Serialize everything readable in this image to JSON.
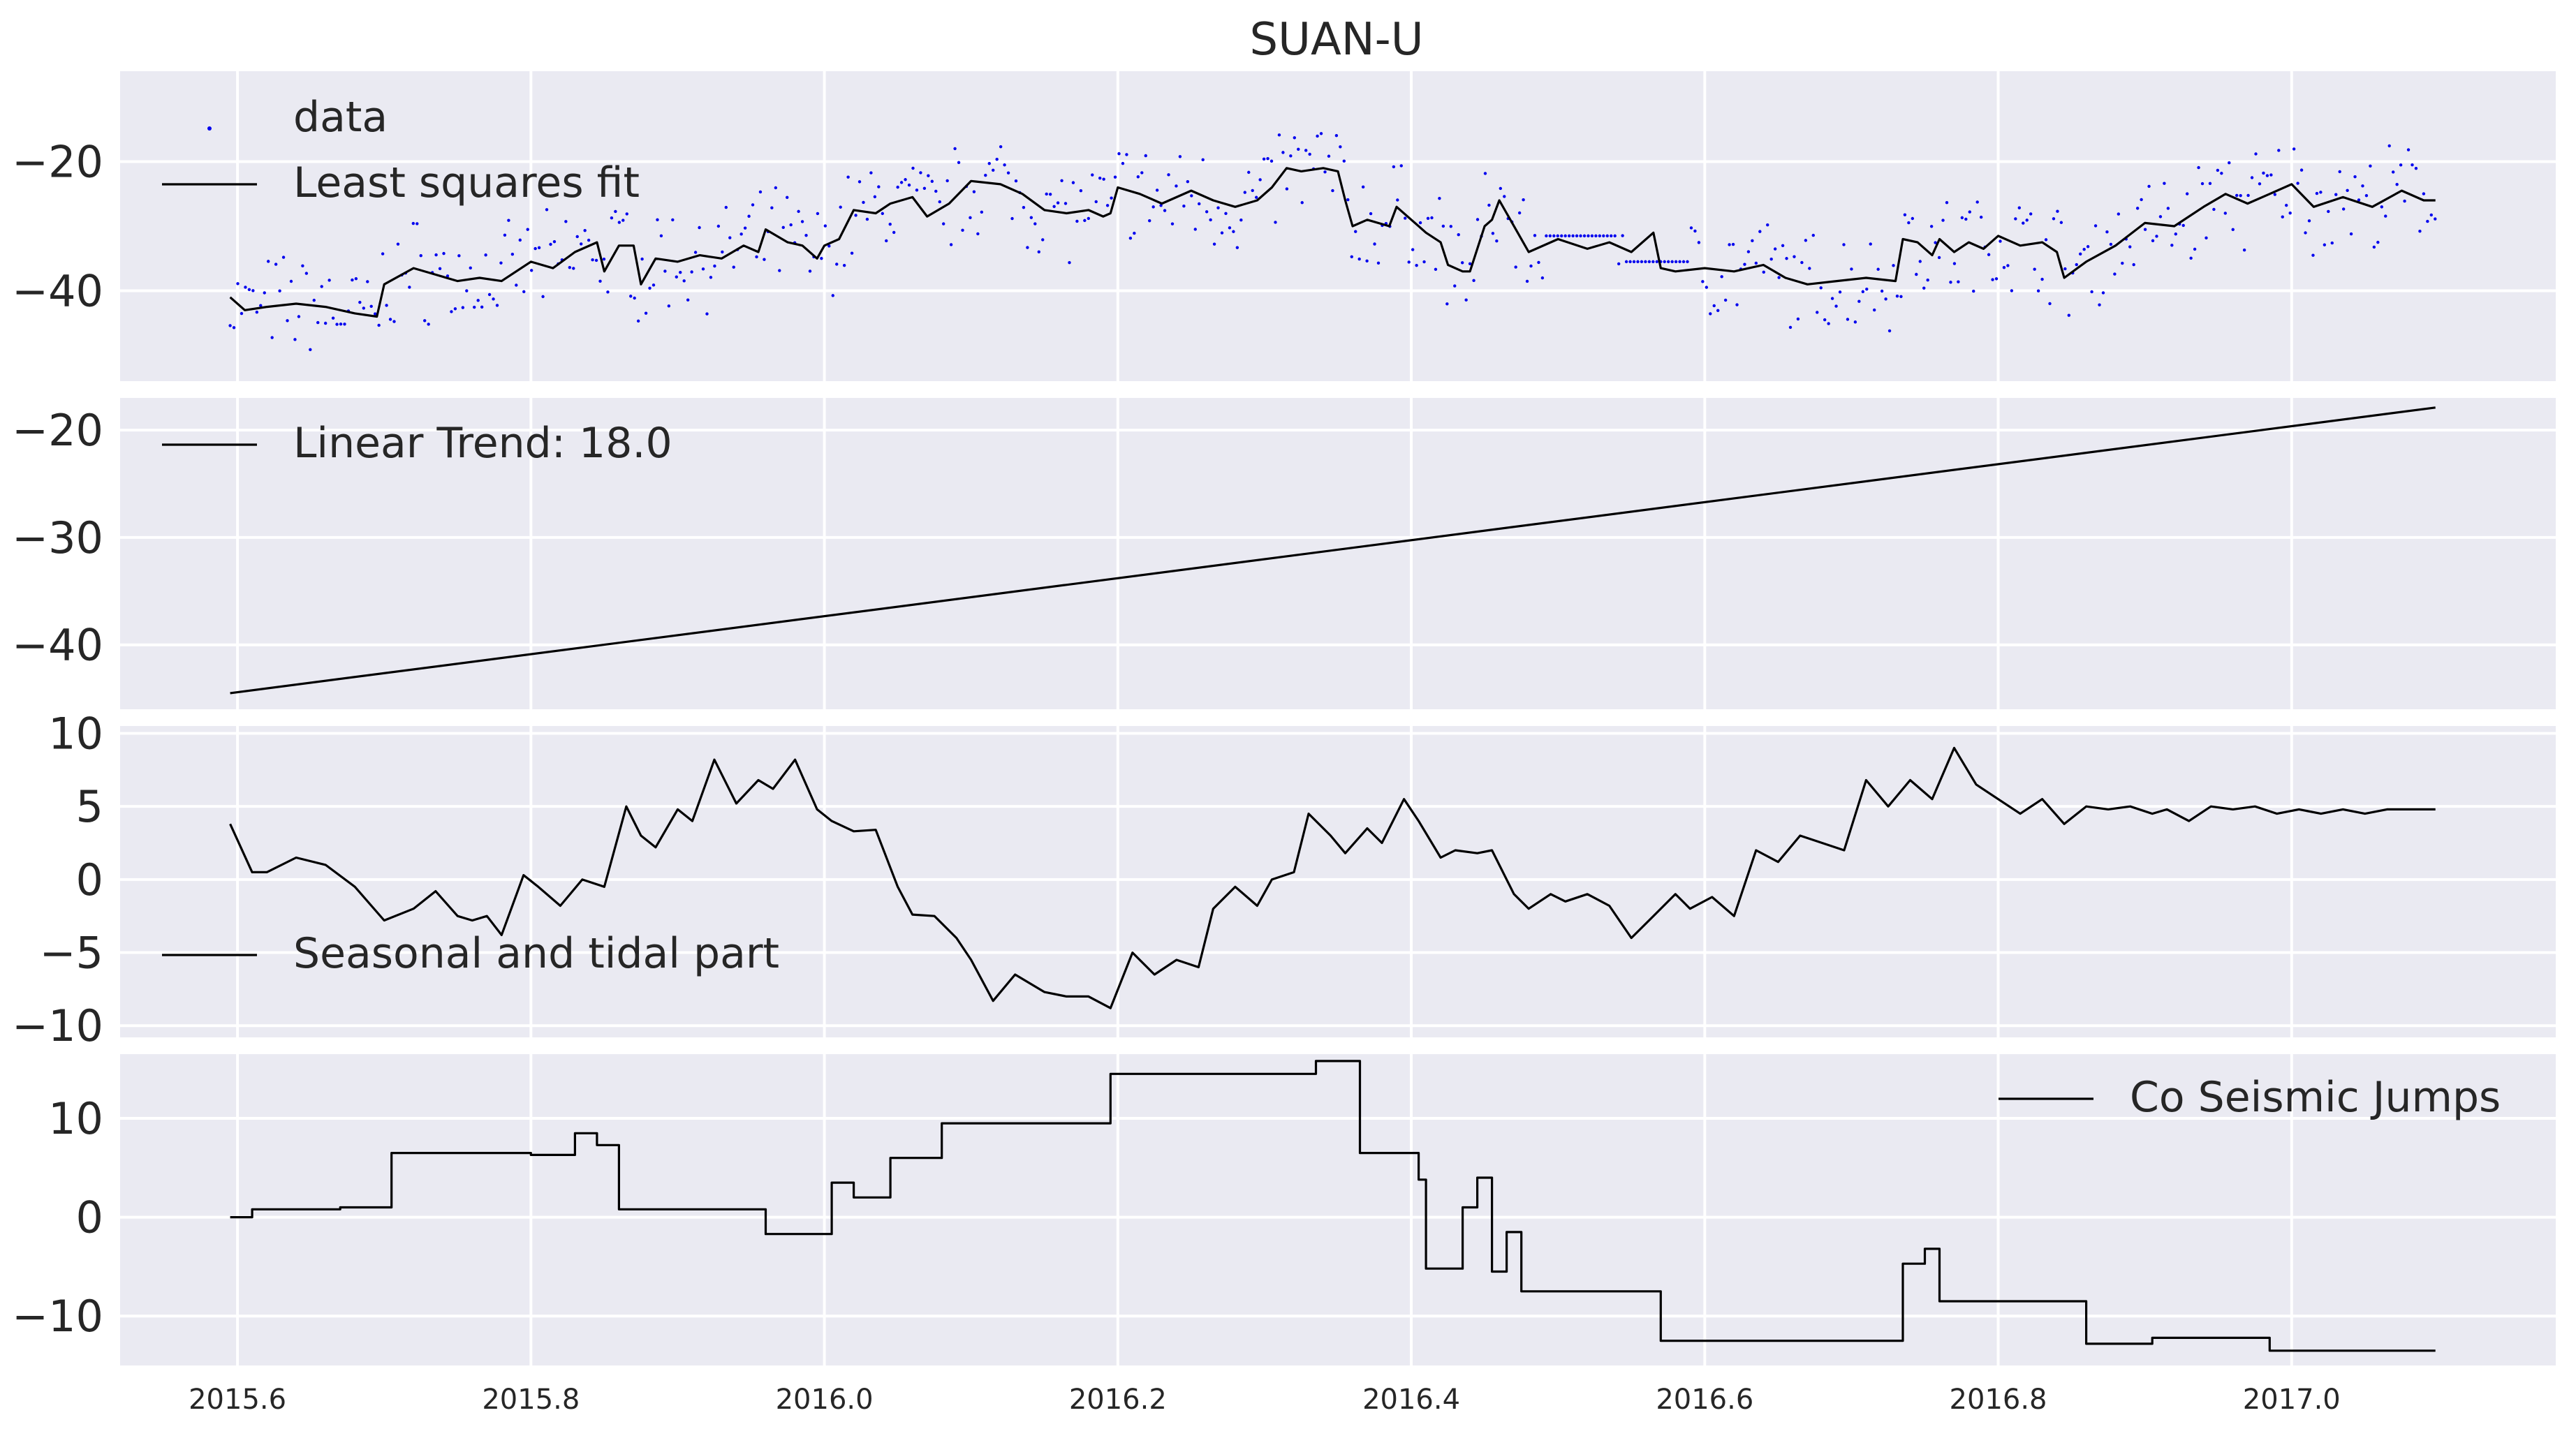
{
  "colors": {
    "panel_background": "#eaeaf2",
    "grid": "#ffffff",
    "line": "#000000",
    "data_points": "#0000ee",
    "text": "#262626"
  },
  "chart_data": [
    {
      "type": "scatter+line",
      "title": "SUAN-U",
      "xlim": [
        2015.52,
        2017.18
      ],
      "ylim": [
        -54,
        -6
      ],
      "yticks": [
        "−20",
        "−40"
      ],
      "ytick_values": [
        -20,
        -40
      ],
      "grid": true,
      "legend": {
        "placement": "top-left",
        "entries": [
          "data",
          "Least squares fit"
        ]
      },
      "series": [
        {
          "name": "Least squares fit",
          "style": "line",
          "x": [
            2015.595,
            2015.605,
            2015.62,
            2015.64,
            2015.66,
            2015.68,
            2015.695,
            2015.7,
            2015.72,
            2015.735,
            2015.75,
            2015.765,
            2015.78,
            2015.8,
            2015.815,
            2015.83,
            2015.845,
            2015.85,
            2015.86,
            2015.87,
            2015.875,
            2015.885,
            2015.9,
            2015.915,
            2015.93,
            2015.945,
            2015.955,
            2015.96,
            2015.975,
            2015.985,
            2015.995,
            2016.0,
            2016.01,
            2016.02,
            2016.035,
            2016.045,
            2016.06,
            2016.07,
            2016.085,
            2016.1,
            2016.12,
            2016.135,
            2016.15,
            2016.165,
            2016.18,
            2016.19,
            2016.195,
            2016.2,
            2016.215,
            2016.23,
            2016.25,
            2016.265,
            2016.28,
            2016.295,
            2016.305,
            2016.315,
            2016.325,
            2016.34,
            2016.35,
            2016.355,
            2016.36,
            2016.37,
            2016.385,
            2016.39,
            2016.4,
            2016.41,
            2016.42,
            2016.425,
            2016.435,
            2016.44,
            2016.45,
            2016.455,
            2016.46,
            2016.48,
            2016.5,
            2016.52,
            2016.535,
            2016.55,
            2016.565,
            2016.57,
            2016.58,
            2016.6,
            2016.62,
            2016.64,
            2016.655,
            2016.67,
            2016.69,
            2016.71,
            2016.73,
            2016.735,
            2016.745,
            2016.755,
            2016.76,
            2016.77,
            2016.78,
            2016.79,
            2016.8,
            2016.815,
            2016.83,
            2016.84,
            2016.845,
            2016.86,
            2016.88,
            2016.9,
            2016.92,
            2016.94,
            2016.955,
            2016.97,
            2016.985,
            2017.0,
            2017.015,
            2017.035,
            2017.055,
            2017.075,
            2017.09,
            2017.098
          ],
          "y": [
            -41,
            -43,
            -42.5,
            -42,
            -42.5,
            -43.5,
            -44,
            -39,
            -36.5,
            -37.5,
            -38.5,
            -38,
            -38.5,
            -35.5,
            -36.5,
            -34,
            -32.5,
            -37,
            -33,
            -33,
            -39,
            -35,
            -35.5,
            -34.5,
            -35,
            -33,
            -34,
            -30.5,
            -32.5,
            -33,
            -35,
            -33,
            -32,
            -27.5,
            -28,
            -26.5,
            -25.5,
            -28.5,
            -26.5,
            -23,
            -23.5,
            -25,
            -27.5,
            -28,
            -27.5,
            -28.5,
            -28,
            -24,
            -25,
            -26.5,
            -24.5,
            -26,
            -27,
            -26,
            -24,
            -21,
            -21.5,
            -21,
            -21.5,
            -26,
            -30,
            -29,
            -30,
            -27,
            -29,
            -31,
            -32.5,
            -36,
            -37,
            -37,
            -30,
            -29,
            -26,
            -34,
            -32,
            -33.5,
            -32.5,
            -34,
            -31,
            -36.5,
            -37,
            -36.5,
            -37,
            -36,
            -38,
            -39,
            -38.5,
            -38,
            -38.5,
            -32,
            -32.5,
            -34.5,
            -32,
            -34,
            -32.5,
            -33.5,
            -31.5,
            -33,
            -32.5,
            -34,
            -38,
            -35.5,
            -33,
            -29.5,
            -30,
            -27,
            -25,
            -26.5,
            -25,
            -23.5,
            -27,
            -25.5,
            -27,
            -24.5,
            -26,
            -26
          ]
        },
        {
          "name": "data",
          "style": "points",
          "color": "#0000ee"
        }
      ]
    },
    {
      "type": "line",
      "xlim": [
        2015.52,
        2017.18
      ],
      "ylim": [
        -46,
        -17
      ],
      "yticks": [
        "−20",
        "−30",
        "−40"
      ],
      "ytick_values": [
        -20,
        -30,
        -40
      ],
      "grid": true,
      "legend": {
        "placement": "top-left",
        "entries": [
          " Linear Trend: 18.0"
        ]
      },
      "series": [
        {
          "name": " Linear Trend: 18.0",
          "x": [
            2015.595,
            2017.098
          ],
          "y": [
            -44.5,
            -17.9
          ]
        }
      ]
    },
    {
      "type": "line",
      "xlim": [
        2015.52,
        2017.18
      ],
      "ylim": [
        -10.8,
        10.5
      ],
      "yticks": [
        "10",
        "5",
        "0",
        "−5",
        "−10"
      ],
      "ytick_values": [
        10,
        5,
        0,
        -5,
        -10
      ],
      "grid": true,
      "legend": {
        "placement": "lower-left",
        "entries": [
          "Seasonal and tidal part"
        ]
      },
      "series": [
        {
          "name": "Seasonal and tidal part",
          "x": [
            2015.595,
            2015.61,
            2015.62,
            2015.64,
            2015.66,
            2015.68,
            2015.7,
            2015.72,
            2015.735,
            2015.75,
            2015.76,
            2015.77,
            2015.78,
            2015.795,
            2015.805,
            2015.82,
            2015.835,
            2015.85,
            2015.865,
            2015.875,
            2015.885,
            2015.9,
            2015.91,
            2015.925,
            2015.94,
            2015.955,
            2015.965,
            2015.98,
            2015.995,
            2016.005,
            2016.02,
            2016.035,
            2016.05,
            2016.06,
            2016.075,
            2016.09,
            2016.1,
            2016.115,
            2016.13,
            2016.15,
            2016.165,
            2016.18,
            2016.195,
            2016.21,
            2016.225,
            2016.24,
            2016.255,
            2016.265,
            2016.28,
            2016.295,
            2016.305,
            2016.32,
            2016.33,
            2016.345,
            2016.355,
            2016.37,
            2016.38,
            2016.395,
            2016.405,
            2016.42,
            2016.43,
            2016.445,
            2016.455,
            2016.47,
            2016.48,
            2016.495,
            2016.505,
            2016.52,
            2016.535,
            2016.55,
            2016.565,
            2016.58,
            2016.59,
            2016.605,
            2016.62,
            2016.635,
            2016.65,
            2016.665,
            2016.68,
            2016.695,
            2016.71,
            2016.725,
            2016.74,
            2016.755,
            2016.77,
            2016.785,
            2016.8,
            2016.815,
            2016.83,
            2016.845,
            2016.86,
            2016.875,
            2016.89,
            2016.905,
            2016.915,
            2016.93,
            2016.945,
            2016.96,
            2016.975,
            2016.99,
            2017.005,
            2017.02,
            2017.035,
            2017.05,
            2017.065,
            2017.08,
            2017.098
          ],
          "y": [
            3.8,
            0.5,
            0.5,
            1.5,
            1,
            -0.5,
            -2.8,
            -2,
            -0.8,
            -2.5,
            -2.8,
            -2.5,
            -3.8,
            0.3,
            -0.5,
            -1.8,
            0,
            -0.5,
            5,
            3,
            2.2,
            4.8,
            4,
            8.2,
            5.2,
            6.8,
            6.2,
            8.2,
            4.8,
            4,
            3.3,
            3.4,
            -0.5,
            -2.4,
            -2.5,
            -4,
            -5.5,
            -8.3,
            -6.5,
            -7.7,
            -8,
            -8,
            -8.8,
            -5,
            -6.5,
            -5.5,
            -6,
            -2,
            -0.5,
            -1.8,
            0,
            0.5,
            4.5,
            3,
            1.8,
            3.5,
            2.5,
            5.5,
            4,
            1.5,
            2,
            1.8,
            2,
            -1,
            -2,
            -1,
            -1.5,
            -1,
            -1.8,
            -4,
            -2.5,
            -1,
            -2,
            -1.2,
            -2.5,
            2,
            1.2,
            3,
            2.5,
            2,
            6.8,
            5,
            6.8,
            5.5,
            9,
            6.5,
            5.5,
            4.5,
            5.5,
            3.8,
            5,
            4.8,
            5,
            4.5,
            4.8,
            4,
            5,
            4.8,
            5,
            4.5,
            4.8,
            4.5,
            4.8,
            4.5,
            4.8,
            4.8,
            4.8
          ]
        }
      ]
    },
    {
      "type": "line",
      "xlim": [
        2015.52,
        2017.18
      ],
      "ylim": [
        -15,
        16.5
      ],
      "yticks": [
        "10",
        "0",
        "−10"
      ],
      "ytick_values": [
        10,
        0,
        -10
      ],
      "xticks": [
        "2015.6",
        "2015.8",
        "2016.0",
        "2016.2",
        "2016.4",
        "2016.6",
        "2016.8",
        "2017.0"
      ],
      "xtick_values": [
        2015.6,
        2015.8,
        2016.0,
        2016.2,
        2016.4,
        2016.6,
        2016.8,
        2017.0
      ],
      "grid": true,
      "legend": {
        "placement": "top-right",
        "entries": [
          "Co Seismic Jumps"
        ]
      },
      "series": [
        {
          "name": "Co Seismic Jumps",
          "style": "step",
          "x": [
            2015.595,
            2015.61,
            2015.61,
            2015.67,
            2015.67,
            2015.705,
            2015.705,
            2015.8,
            2015.8,
            2015.83,
            2015.83,
            2015.845,
            2015.845,
            2015.86,
            2015.86,
            2015.96,
            2015.96,
            2016.005,
            2016.005,
            2016.02,
            2016.02,
            2016.045,
            2016.045,
            2016.08,
            2016.08,
            2016.195,
            2016.195,
            2016.2,
            2016.2,
            2016.335,
            2016.335,
            2016.365,
            2016.365,
            2016.405,
            2016.405,
            2016.41,
            2016.41,
            2016.435,
            2016.435,
            2016.445,
            2016.445,
            2016.455,
            2016.455,
            2016.465,
            2016.465,
            2016.475,
            2016.475,
            2016.57,
            2016.57,
            2016.735,
            2016.735,
            2016.75,
            2016.75,
            2016.76,
            2016.76,
            2016.86,
            2016.86,
            2016.905,
            2016.905,
            2016.985,
            2016.985,
            2017.098
          ],
          "y": [
            0,
            0,
            0.8,
            0.8,
            1,
            1,
            6.5,
            6.5,
            6.3,
            6.3,
            8.5,
            8.5,
            7.3,
            7.3,
            0.8,
            0.8,
            -1.7,
            -1.7,
            3.5,
            3.5,
            2,
            2,
            6,
            6,
            9.5,
            9.5,
            14.5,
            14.5,
            14.5,
            14.5,
            15.8,
            15.8,
            6.5,
            6.5,
            3.8,
            3.8,
            -5.2,
            -5.2,
            1,
            1,
            4,
            4,
            -5.5,
            -5.5,
            -1.5,
            -1.5,
            -7.5,
            -7.5,
            -12.5,
            -12.5,
            -4.7,
            -4.7,
            -3.2,
            -3.2,
            -8.5,
            -8.5,
            -12.8,
            -12.8,
            -12.2,
            -12.2,
            -13.5,
            -13.5
          ]
        }
      ]
    }
  ]
}
